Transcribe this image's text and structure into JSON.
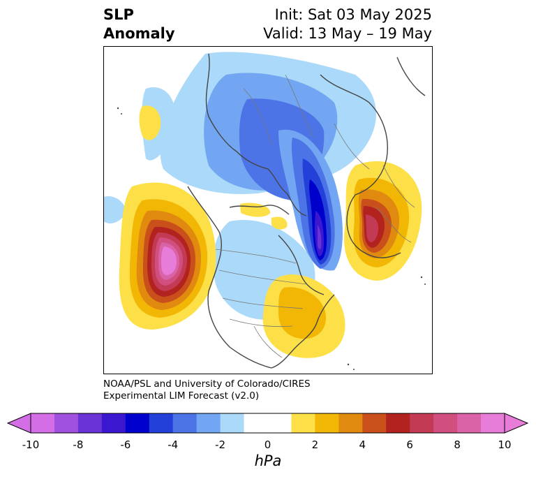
{
  "header": {
    "title_line1": "SLP",
    "title_line2": "Anomaly",
    "init_label": "Init: Sat 03 May 2025",
    "valid_label": "Valid: 13 May – 19 May"
  },
  "credit": {
    "line1": "NOAA/PSL and University of Colorado/CIRES",
    "line2": "Experimental LIM Forecast (v2.0)"
  },
  "colorbar": {
    "unit": "hPa",
    "tick_labels": [
      "-10",
      "-8",
      "-6",
      "-4",
      "-2",
      "0",
      "2",
      "4",
      "6",
      "8",
      "10"
    ],
    "colors": [
      "#d46ee6",
      "#a052de",
      "#6a33d6",
      "#3b18cf",
      "#0000cc",
      "#2341d9",
      "#4d74e6",
      "#73a6f2",
      "#abd9fa",
      "#ffffff",
      "#ffffff",
      "#fde047",
      "#f2b705",
      "#e08a10",
      "#c9501a",
      "#b2221f",
      "#c33a55",
      "#d14f7e",
      "#da62a6",
      "#e87cd9"
    ],
    "under_color": "#d46ee6",
    "over_color": "#e87cd9"
  },
  "map_features": {
    "positive_centers": [
      "north-pacific-high",
      "europe-high",
      "eastern-us-high",
      "mid-pacific-small-high"
    ],
    "negative_centers": [
      "arctic-scandinavia-low",
      "barents-trough",
      "north-atlantic-trough"
    ]
  }
}
